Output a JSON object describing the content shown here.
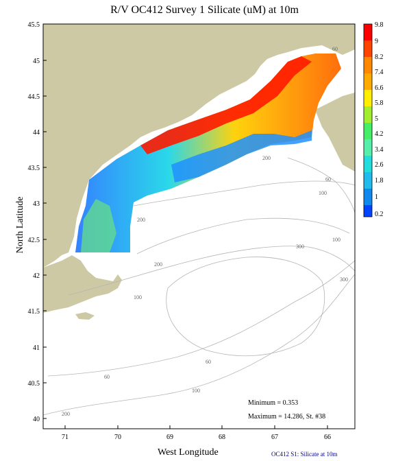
{
  "title": "R/V OC412 Survey 1 Silicate (uM) at 10m",
  "xlabel": "West Longitude",
  "ylabel": "North Latitude",
  "footer": "OC412 S1: Silicate at 10m",
  "stats": {
    "minimum": "Minimum = 0.353",
    "maximum": "Maximum = 14.286, St. #38"
  },
  "axes": {
    "lon_ticks": [
      "71",
      "70",
      "69",
      "68",
      "67",
      "66"
    ],
    "lat_ticks": [
      "45.5",
      "45",
      "44.5",
      "44",
      "43.5",
      "43",
      "42.5",
      "42",
      "41.5",
      "41",
      "40.5",
      "40"
    ]
  },
  "colorbar": {
    "labels": [
      "9.8",
      "9",
      "8.2",
      "7.4",
      "6.6",
      "5.8",
      "5",
      "4.2",
      "3.4",
      "2.6",
      "1.8",
      "1",
      "0.2"
    ],
    "colors": [
      "#ff0000",
      "#ff4400",
      "#ff8800",
      "#ffaa00",
      "#ffee00",
      "#a4ee30",
      "#44ee66",
      "#55eeaa",
      "#22dddd",
      "#22bbee",
      "#1188ee",
      "#0055ff",
      "#0022ff"
    ]
  },
  "contour_labels": [
    "60",
    "100",
    "200",
    "300"
  ],
  "colors": {
    "land": "#cdc9a5",
    "contour": "#b4b4b4"
  }
}
